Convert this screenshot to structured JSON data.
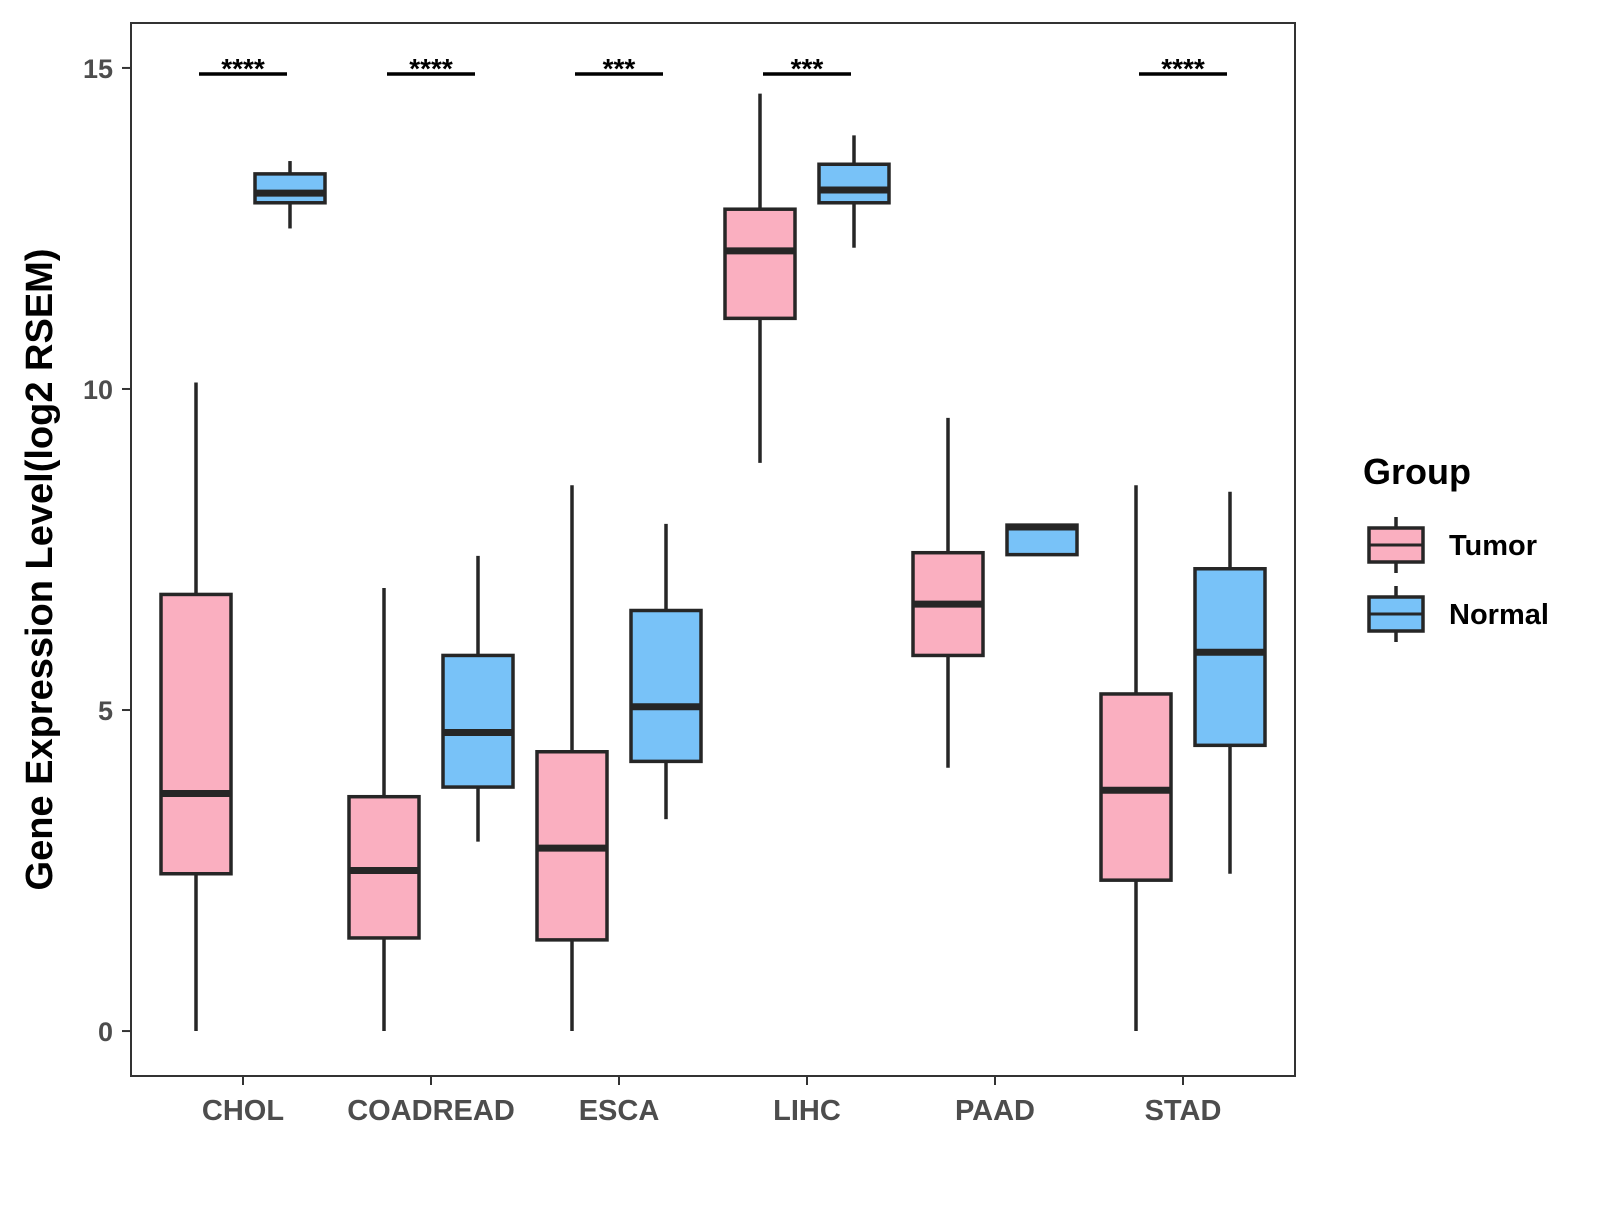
{
  "chart_data": {
    "type": "boxplot",
    "title": "",
    "xlabel": "",
    "ylabel": "Gene Expression Level(log2 RSEM)",
    "ylim": [
      -0.7,
      15.7
    ],
    "yticks": [
      0,
      5,
      10,
      15
    ],
    "categories": [
      "CHOL",
      "COADREAD",
      "ESCA",
      "LIHC",
      "PAAD",
      "STAD"
    ],
    "groups": [
      {
        "name": "Tumor",
        "color": "#FAAFC0"
      },
      {
        "name": "Normal",
        "color": "#78C2F8"
      }
    ],
    "series": [
      {
        "name": "Tumor",
        "boxes": [
          {
            "min": 0.0,
            "q1": 2.45,
            "median": 3.7,
            "q3": 6.8,
            "max": 10.1
          },
          {
            "min": 0.0,
            "q1": 1.45,
            "median": 2.5,
            "q3": 3.65,
            "max": 6.9
          },
          {
            "min": 0.0,
            "q1": 1.42,
            "median": 2.85,
            "q3": 4.35,
            "max": 8.5
          },
          {
            "min": 8.85,
            "q1": 11.1,
            "median": 12.15,
            "q3": 12.8,
            "max": 14.6
          },
          {
            "min": 4.1,
            "q1": 5.85,
            "median": 6.65,
            "q3": 7.45,
            "max": 9.55
          },
          {
            "min": 0.0,
            "q1": 2.35,
            "median": 3.75,
            "q3": 5.25,
            "max": 8.5
          }
        ]
      },
      {
        "name": "Normal",
        "boxes": [
          {
            "min": 12.5,
            "q1": 12.9,
            "median": 13.05,
            "q3": 13.35,
            "max": 13.55
          },
          {
            "min": 2.95,
            "q1": 3.8,
            "median": 4.65,
            "q3": 5.85,
            "max": 7.4
          },
          {
            "min": 3.3,
            "q1": 4.2,
            "median": 5.05,
            "q3": 6.55,
            "max": 7.9
          },
          {
            "min": 12.2,
            "q1": 12.9,
            "median": 13.1,
            "q3": 13.5,
            "max": 13.95
          },
          {
            "min": 7.42,
            "q1": 7.42,
            "median": 7.85,
            "q3": 7.88,
            "max": 7.88
          },
          {
            "min": 2.45,
            "q1": 4.45,
            "median": 5.9,
            "q3": 7.2,
            "max": 8.4
          }
        ]
      }
    ],
    "significance": [
      "****",
      "****",
      "***",
      "***",
      "",
      "****"
    ],
    "legend": {
      "title": "Group",
      "position": "right"
    }
  }
}
